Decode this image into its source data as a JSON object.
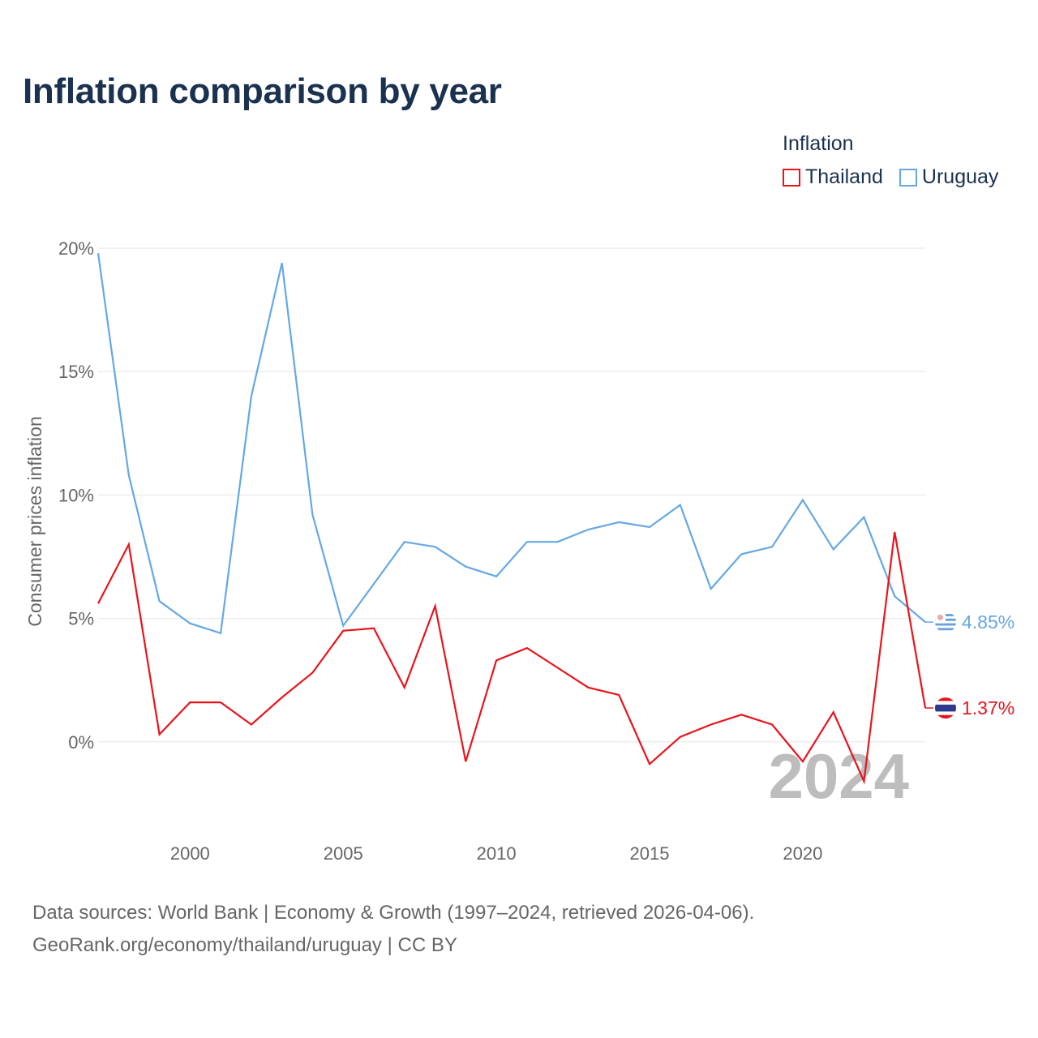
{
  "header": {
    "title": "Inflation comparison by year"
  },
  "legend": {
    "title": "Inflation",
    "items": [
      {
        "label": "Thailand",
        "color": "#e8141c"
      },
      {
        "label": "Uruguay",
        "color": "#65a8e3"
      }
    ]
  },
  "footer": {
    "line1": "Data sources: World Bank | Economy & Growth (1997–2024, retrieved 2026-04-06).",
    "line2": "GeoRank.org/economy/thailand/uruguay | CC BY"
  },
  "chart_data": {
    "type": "line",
    "title": "Inflation comparison by year",
    "xlabel": "",
    "ylabel": "Consumer prices inflation",
    "xlim": [
      1997,
      2024
    ],
    "ylim": [
      -2.8,
      20
    ],
    "x_ticks": [
      2000,
      2005,
      2010,
      2015,
      2020
    ],
    "y_ticks": [
      0,
      5,
      10,
      15,
      20
    ],
    "y_tick_labels": [
      "0%",
      "5%",
      "10%",
      "15%",
      "20%"
    ],
    "grid": true,
    "year_watermark": "2024",
    "x": [
      1997,
      1998,
      1999,
      2000,
      2001,
      2002,
      2003,
      2004,
      2005,
      2006,
      2007,
      2008,
      2009,
      2010,
      2011,
      2012,
      2013,
      2014,
      2015,
      2016,
      2017,
      2018,
      2019,
      2020,
      2021,
      2022,
      2023,
      2024
    ],
    "series": [
      {
        "name": "Uruguay",
        "color": "#65a8e3",
        "end_label": "4.85%",
        "flag": "uruguay-flag-icon",
        "values": [
          19.8,
          10.8,
          5.7,
          4.8,
          4.4,
          14.0,
          19.4,
          9.2,
          4.7,
          6.4,
          8.1,
          7.9,
          7.1,
          6.7,
          8.1,
          8.1,
          8.6,
          8.9,
          8.7,
          9.6,
          6.2,
          7.6,
          7.9,
          9.8,
          7.8,
          9.1,
          5.9,
          4.85
        ]
      },
      {
        "name": "Thailand",
        "color": "#e8141c",
        "end_label": "1.37%",
        "flag": "thailand-flag-icon",
        "values": [
          5.6,
          8.0,
          0.3,
          1.6,
          1.6,
          0.7,
          1.8,
          2.8,
          4.5,
          4.6,
          2.2,
          5.5,
          -0.8,
          3.3,
          3.8,
          3.0,
          2.2,
          1.9,
          -0.9,
          0.2,
          0.7,
          1.1,
          0.7,
          -0.8,
          1.2,
          -1.6,
          8.5,
          1.37
        ]
      }
    ]
  }
}
